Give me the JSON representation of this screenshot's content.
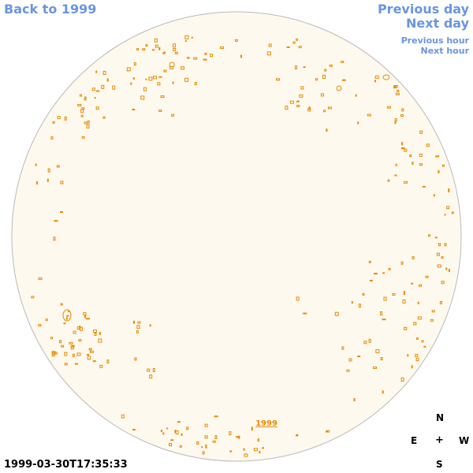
{
  "nav": {
    "back_label": "Back to 1999",
    "previous_day": "Previous day",
    "next_day": "Next day",
    "previous_hour": "Previous hour",
    "next_hour": "Next hour"
  },
  "disk": {
    "fill_color": "#fef9ee",
    "edge_color": "#b9b9b9",
    "feature_color": "#e88a00",
    "year_link": "1999"
  },
  "compass": {
    "north": "N",
    "east": "E",
    "center": "+",
    "west": "W",
    "south": "S"
  },
  "timestamp": "1999-03-30T17:35:33"
}
